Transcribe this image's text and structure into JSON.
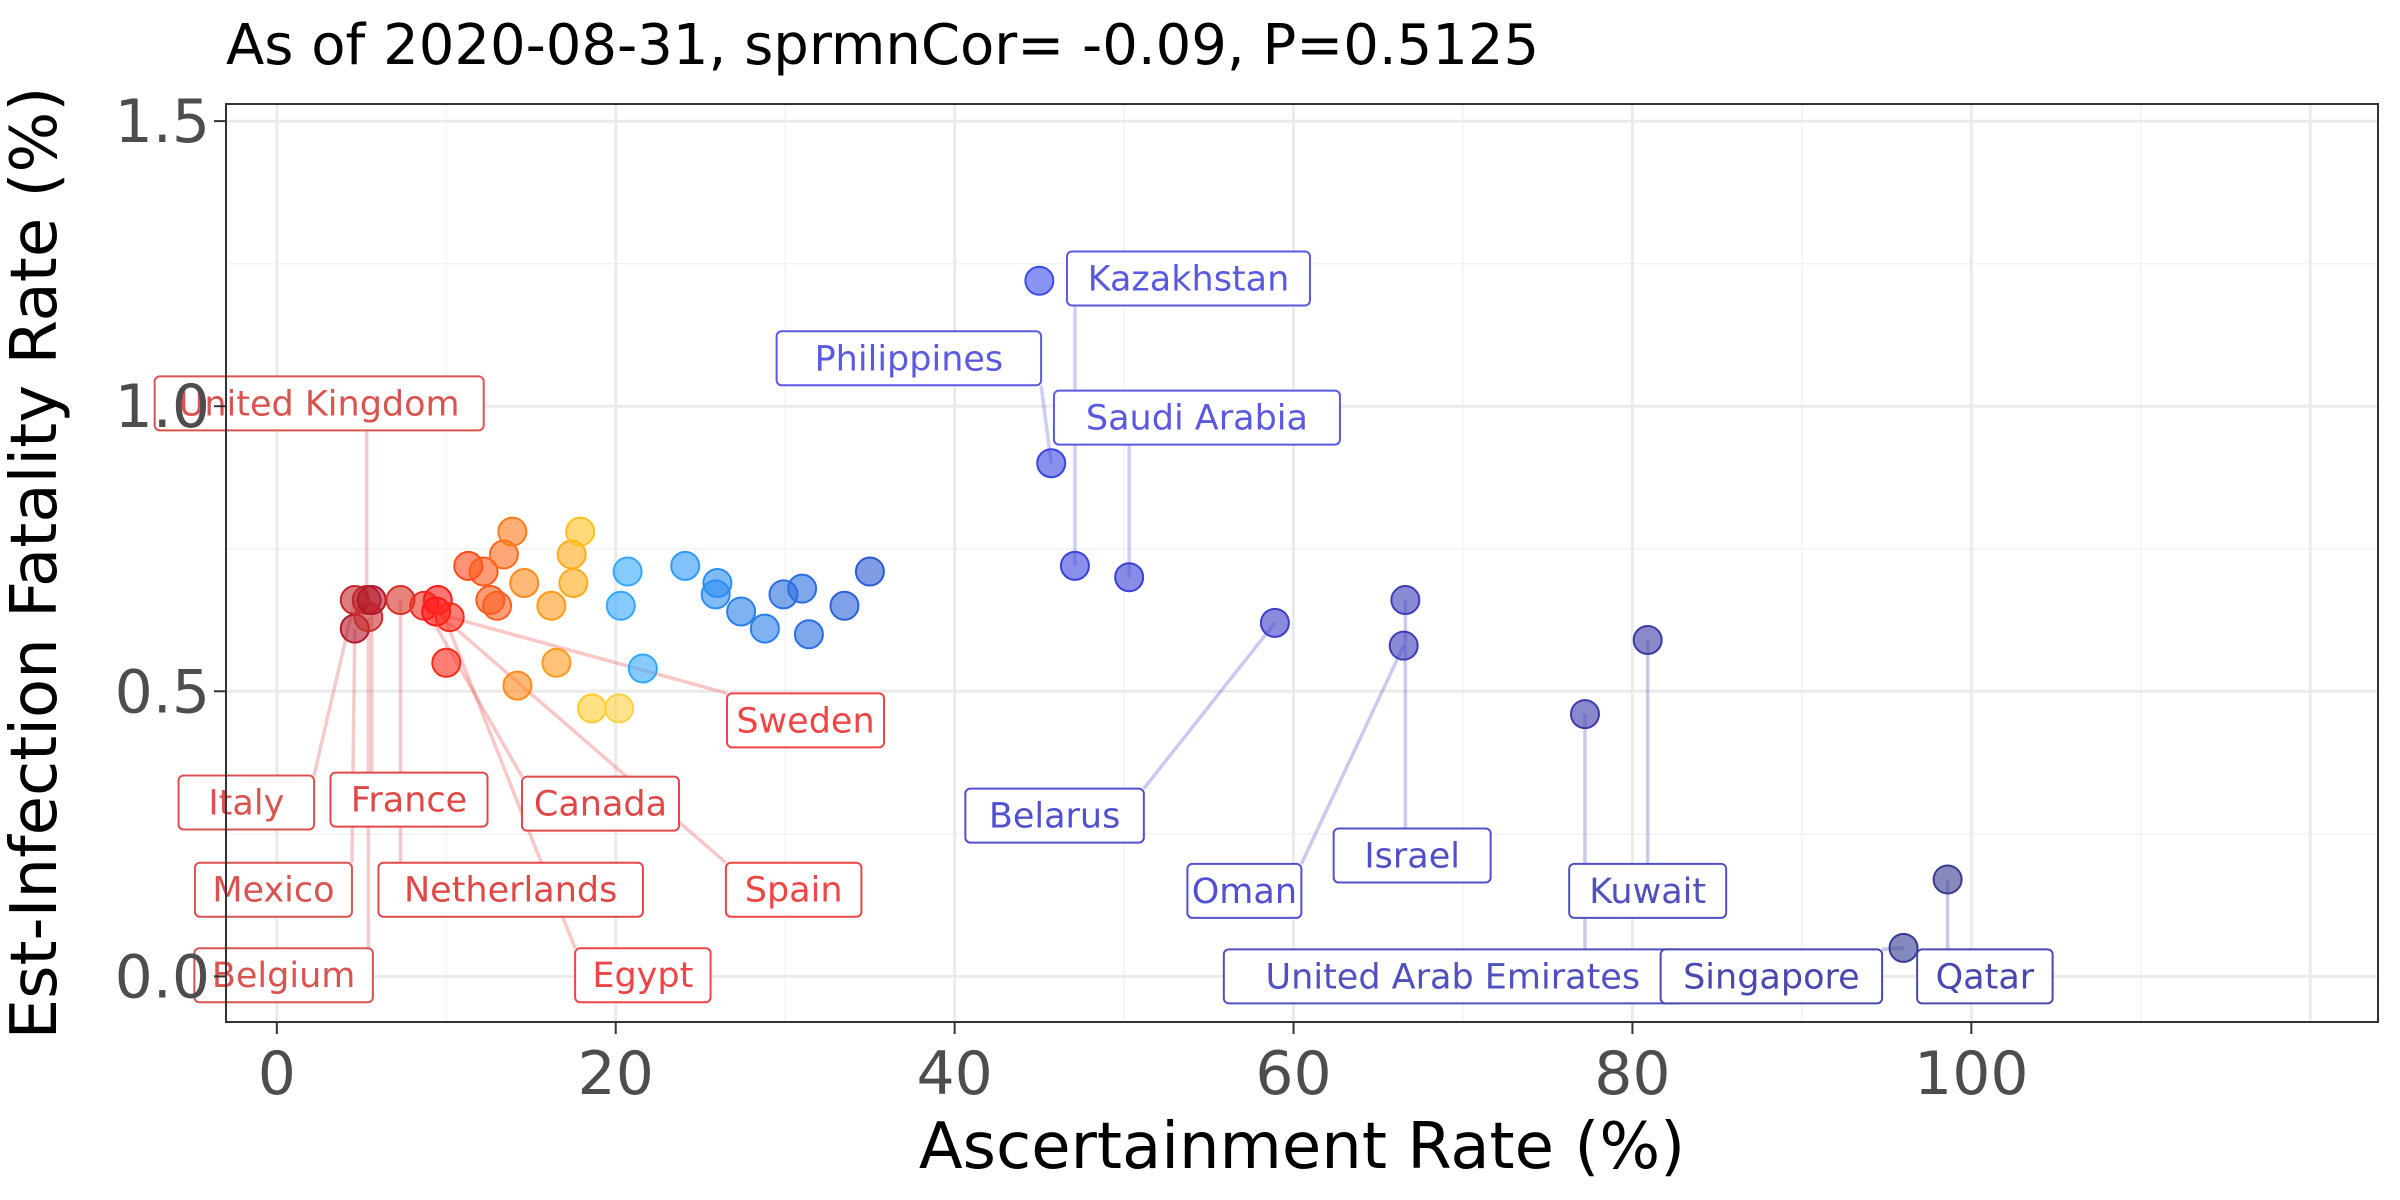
{
  "chart_data": {
    "type": "scatter",
    "title": "As of 2020-08-31, sprmnCor= -0.09, P=0.5125",
    "xlabel": "Ascertainment Rate (%)",
    "ylabel": "Est-Infection Fatality Rate (%)",
    "xlim": [
      -3,
      124
    ],
    "ylim": [
      -0.08,
      1.53
    ],
    "x_ticks": [
      0,
      20,
      40,
      60,
      80,
      100
    ],
    "x_tick_labels": [
      "0",
      "20",
      "40",
      "60",
      "80",
      "100"
    ],
    "y_ticks": [
      0,
      0.5,
      1,
      1.5
    ],
    "y_tick_labels": [
      "0.0",
      "0.5",
      "1.0",
      "1.5"
    ],
    "grid": true,
    "legend": "none",
    "color_scale": "ascertainment rate, dark red (low) through orange, yellow, light blue, blue to dark slate blue (high)",
    "points": [
      {
        "x": 4.6,
        "y": 0.61,
        "color": "#b2182b"
      },
      {
        "x": 4.6,
        "y": 0.66,
        "color": "#c0272d"
      },
      {
        "x": 5.3,
        "y": 0.66,
        "color": "#c0272d"
      },
      {
        "x": 5.4,
        "y": 0.63,
        "color": "#c8302f"
      },
      {
        "x": 5.6,
        "y": 0.66,
        "color": "#b2182b"
      },
      {
        "x": 7.3,
        "y": 0.66,
        "color": "#d73027"
      },
      {
        "x": 8.7,
        "y": 0.65,
        "color": "#e8311f"
      },
      {
        "x": 9.4,
        "y": 0.64,
        "color": "#ff1a1a"
      },
      {
        "x": 9.5,
        "y": 0.66,
        "color": "#ff1a1a"
      },
      {
        "x": 10.0,
        "y": 0.55,
        "color": "#ff2a1a"
      },
      {
        "x": 10.2,
        "y": 0.63,
        "color": "#ff2a1a"
      },
      {
        "x": 11.3,
        "y": 0.72,
        "color": "#ff4a1a"
      },
      {
        "x": 12.2,
        "y": 0.71,
        "color": "#ff5a1a"
      },
      {
        "x": 12.6,
        "y": 0.66,
        "color": "#ff5a1a"
      },
      {
        "x": 13.0,
        "y": 0.65,
        "color": "#ff5f1f"
      },
      {
        "x": 13.4,
        "y": 0.74,
        "color": "#ff6a1a"
      },
      {
        "x": 13.9,
        "y": 0.78,
        "color": "#ff7a1a"
      },
      {
        "x": 14.2,
        "y": 0.51,
        "color": "#ff8a1a"
      },
      {
        "x": 14.6,
        "y": 0.69,
        "color": "#ff8a1a"
      },
      {
        "x": 16.2,
        "y": 0.65,
        "color": "#ff9a1a"
      },
      {
        "x": 16.5,
        "y": 0.55,
        "color": "#ff9a1a"
      },
      {
        "x": 17.4,
        "y": 0.74,
        "color": "#ffaa1a"
      },
      {
        "x": 17.5,
        "y": 0.69,
        "color": "#ffaa1a"
      },
      {
        "x": 17.9,
        "y": 0.78,
        "color": "#ffc020"
      },
      {
        "x": 18.6,
        "y": 0.47,
        "color": "#ffcc30"
      },
      {
        "x": 20.2,
        "y": 0.47,
        "color": "#ffd040"
      },
      {
        "x": 20.3,
        "y": 0.65,
        "color": "#33a8ff"
      },
      {
        "x": 20.7,
        "y": 0.71,
        "color": "#33a8ff"
      },
      {
        "x": 21.6,
        "y": 0.54,
        "color": "#33a8ff"
      },
      {
        "x": 24.1,
        "y": 0.72,
        "color": "#2f9af8"
      },
      {
        "x": 25.9,
        "y": 0.67,
        "color": "#2b8ef0"
      },
      {
        "x": 26.0,
        "y": 0.69,
        "color": "#2b8ef0"
      },
      {
        "x": 27.4,
        "y": 0.64,
        "color": "#2a7ee8"
      },
      {
        "x": 28.8,
        "y": 0.61,
        "color": "#2a7ee8"
      },
      {
        "x": 29.9,
        "y": 0.67,
        "color": "#2a6ee0"
      },
      {
        "x": 31.0,
        "y": 0.68,
        "color": "#2a6ee0"
      },
      {
        "x": 31.4,
        "y": 0.6,
        "color": "#2a6ee0"
      },
      {
        "x": 33.5,
        "y": 0.65,
        "color": "#2a62d8"
      },
      {
        "x": 35.0,
        "y": 0.71,
        "color": "#2a5ad2"
      },
      {
        "x": 45.0,
        "y": 1.22,
        "color": "#3a4cec"
      },
      {
        "x": 45.7,
        "y": 0.9,
        "color": "#3a44e0"
      },
      {
        "x": 47.1,
        "y": 0.72,
        "color": "#3a44dc"
      },
      {
        "x": 50.3,
        "y": 0.7,
        "color": "#3a40d6"
      },
      {
        "x": 58.9,
        "y": 0.62,
        "color": "#3e3ec8"
      },
      {
        "x": 66.5,
        "y": 0.58,
        "color": "#3e3cb8"
      },
      {
        "x": 66.6,
        "y": 0.66,
        "color": "#3e3cb8"
      },
      {
        "x": 77.2,
        "y": 0.46,
        "color": "#3e3aa8"
      },
      {
        "x": 80.9,
        "y": 0.59,
        "color": "#3e3aa2"
      },
      {
        "x": 96.0,
        "y": 0.05,
        "color": "#333a92"
      },
      {
        "x": 98.6,
        "y": 0.17,
        "color": "#3a3a8e"
      }
    ],
    "annotations": [
      {
        "label": "United Kingdom",
        "label_x": 2.5,
        "label_y": 1.005,
        "point_x": 5.3,
        "point_y": 0.66,
        "color": "#d9534f"
      },
      {
        "label": "Italy",
        "label_x": -1.8,
        "label_y": 0.305,
        "point_x": 4.6,
        "point_y": 0.66,
        "color": "#d9534f"
      },
      {
        "label": "France",
        "label_x": 7.8,
        "label_y": 0.31,
        "point_x": 5.6,
        "point_y": 0.66,
        "color": "#e04848"
      },
      {
        "label": "Canada",
        "label_x": 19.1,
        "label_y": 0.303,
        "point_x": 8.7,
        "point_y": 0.65,
        "color": "#e04848"
      },
      {
        "label": "Sweden",
        "label_x": 31.2,
        "label_y": 0.449,
        "point_x": 10.2,
        "point_y": 0.63,
        "color": "#ef4545"
      },
      {
        "label": "Mexico",
        "label_x": -0.2,
        "label_y": 0.152,
        "point_x": 4.6,
        "point_y": 0.61,
        "color": "#d9534f"
      },
      {
        "label": "Netherlands",
        "label_x": 13.8,
        "label_y": 0.152,
        "point_x": 7.3,
        "point_y": 0.66,
        "color": "#e04848"
      },
      {
        "label": "Spain",
        "label_x": 30.5,
        "label_y": 0.152,
        "point_x": 9.4,
        "point_y": 0.64,
        "color": "#ef4545"
      },
      {
        "label": "Belgium",
        "label_x": 0.4,
        "label_y": 0.002,
        "point_x": 5.4,
        "point_y": 0.63,
        "color": "#d9534f"
      },
      {
        "label": "Egypt",
        "label_x": 21.6,
        "label_y": 0.002,
        "point_x": 9.5,
        "point_y": 0.66,
        "color": "#ef4545"
      },
      {
        "label": "Kazakhstan",
        "label_x": 53.8,
        "label_y": 1.224,
        "point_x": 47.1,
        "point_y": 0.72,
        "color": "#5a5ae0"
      },
      {
        "label": "Philippines",
        "label_x": 37.3,
        "label_y": 1.084,
        "point_x": 45.7,
        "point_y": 0.9,
        "color": "#5a5ae0"
      },
      {
        "label": "Saudi Arabia",
        "label_x": 54.3,
        "label_y": 0.98,
        "point_x": 50.3,
        "point_y": 0.7,
        "color": "#5a5ae0"
      },
      {
        "label": "Belarus",
        "label_x": 45.9,
        "label_y": 0.282,
        "point_x": 58.9,
        "point_y": 0.62,
        "color": "#5050d0"
      },
      {
        "label": "Oman",
        "label_x": 57.1,
        "label_y": 0.15,
        "point_x": 66.5,
        "point_y": 0.58,
        "color": "#5050d0"
      },
      {
        "label": "Israel",
        "label_x": 67.0,
        "label_y": 0.212,
        "point_x": 66.6,
        "point_y": 0.66,
        "color": "#5050c8"
      },
      {
        "label": "Kuwait",
        "label_x": 80.9,
        "label_y": 0.15,
        "point_x": 80.9,
        "point_y": 0.59,
        "color": "#5050c0"
      },
      {
        "label": "United Arab Emirates",
        "label_x": 69.4,
        "label_y": 0.0,
        "point_x": 77.2,
        "point_y": 0.46,
        "color": "#5050c0"
      },
      {
        "label": "Singapore",
        "label_x": 88.2,
        "label_y": 0.0,
        "point_x": 96.0,
        "point_y": 0.05,
        "color": "#4848b0"
      },
      {
        "label": "Qatar",
        "label_x": 100.8,
        "label_y": 0.0,
        "point_x": 98.6,
        "point_y": 0.17,
        "color": "#4848b0"
      }
    ]
  }
}
